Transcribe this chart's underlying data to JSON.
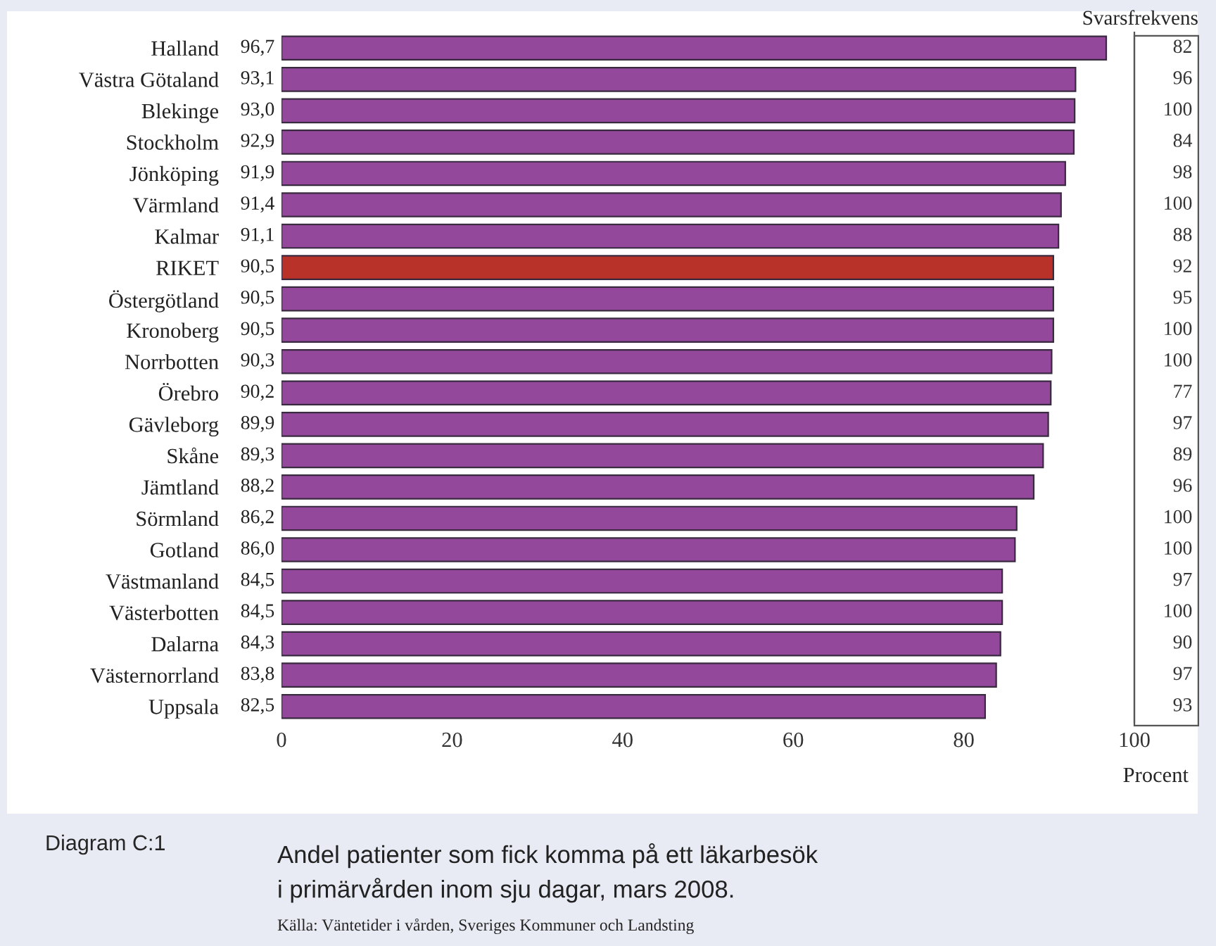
{
  "chart_data": {
    "type": "bar",
    "orientation": "horizontal",
    "categories": [
      "Halland",
      "Västra Götaland",
      "Blekinge",
      "Stockholm",
      "Jönköping",
      "Värmland",
      "Kalmar",
      "RIKET",
      "Östergötland",
      "Kronoberg",
      "Norrbotten",
      "Örebro",
      "Gävleborg",
      "Skåne",
      "Jämtland",
      "Sörmland",
      "Gotland",
      "Västmanland",
      "Västerbotten",
      "Dalarna",
      "Västernorrland",
      "Uppsala"
    ],
    "values": [
      96.7,
      93.1,
      93.0,
      92.9,
      91.9,
      91.4,
      91.1,
      90.5,
      90.5,
      90.5,
      90.3,
      90.2,
      89.9,
      89.3,
      88.2,
      86.2,
      86.0,
      84.5,
      84.5,
      84.3,
      83.8,
      82.5
    ],
    "value_labels": [
      "96,7",
      "93,1",
      "93,0",
      "92,9",
      "91,9",
      "91,4",
      "91,1",
      "90,5",
      "90,5",
      "90,5",
      "90,3",
      "90,2",
      "89,9",
      "89,3",
      "88,2",
      "86,2",
      "86,0",
      "84,5",
      "84,5",
      "84,3",
      "83,8",
      "82,5"
    ],
    "colors": [
      "#93489b",
      "#93489b",
      "#93489b",
      "#93489b",
      "#93489b",
      "#93489b",
      "#93489b",
      "#b8322a",
      "#93489b",
      "#93489b",
      "#93489b",
      "#93489b",
      "#93489b",
      "#93489b",
      "#93489b",
      "#93489b",
      "#93489b",
      "#93489b",
      "#93489b",
      "#93489b",
      "#93489b",
      "#93489b"
    ],
    "xlim": [
      0,
      100
    ],
    "xticks": [
      0,
      20,
      40,
      60,
      80,
      100
    ],
    "xlabel": "Procent",
    "title": "Andel patienter som fick komma på ett läkarbesök\ni primärvården inom sju dagar, mars 2008.",
    "annotations": [
      "Svarsfrekvens",
      "Diagram C:1",
      "Källa: Väntetider i vården, Sveriges Kommuner och Landsting",
      "82",
      "96",
      "100",
      "84",
      "98",
      "100",
      "88",
      "92",
      "95",
      "100",
      "100",
      "77",
      "97",
      "89",
      "96",
      "100",
      "100",
      "97",
      "100",
      "90",
      "97",
      "93"
    ]
  }
}
